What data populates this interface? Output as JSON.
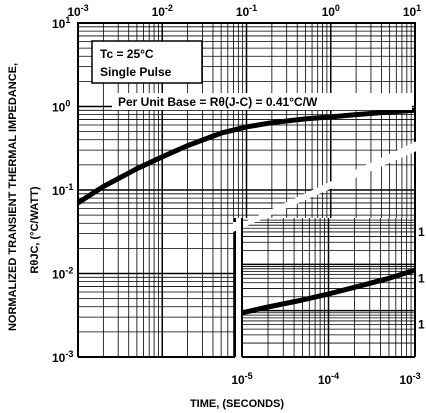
{
  "chart_data": {
    "type": "line",
    "ylabel_line1": "NORMALIZED TRANSIENT THERMAL IMPEDANCE,",
    "ylabel_line2": "RθJC, (°C/WATT)",
    "xlabel": "TIME, (SECONDS)",
    "annotations": {
      "condition_1": "Tc = 25°C",
      "condition_2": "Single Pulse",
      "base": "Per Unit Base = Rθ(J-C) = 0.41°C/W"
    },
    "x_scale": "log",
    "y_scale": "log",
    "grid": true,
    "main_axis": {
      "xlim": [
        0.001,
        10
      ],
      "ylim": [
        0.001,
        10
      ],
      "top_tick_labels": [
        "10-3",
        "10-2",
        "10-1",
        "100",
        "101"
      ],
      "left_tick_labels": [
        "101",
        "100",
        "10-1",
        "10-2",
        "10-3"
      ]
    },
    "inset_axis": {
      "xlim": [
        1e-05,
        0.001
      ],
      "ylim": [
        0.001,
        1
      ],
      "bottom_tick_labels": [
        "10-5",
        "10-4",
        "10-3"
      ],
      "right_tick_labels": [
        "1",
        "1",
        "1"
      ]
    },
    "series": [
      {
        "axis": "main",
        "x": [
          0.001,
          0.002,
          0.005,
          0.01,
          0.02,
          0.05,
          0.1,
          0.2,
          0.5,
          1,
          2,
          5,
          10
        ],
        "y": [
          0.07,
          0.11,
          0.18,
          0.25,
          0.34,
          0.48,
          0.57,
          0.64,
          0.71,
          0.75,
          0.8,
          0.86,
          0.9
        ]
      },
      {
        "axis": "inset",
        "x": [
          1e-05,
          2e-05,
          5e-05,
          0.0001,
          0.0002,
          0.0005,
          0.001
        ],
        "y": [
          0.009,
          0.012,
          0.017,
          0.023,
          0.032,
          0.05,
          0.075
        ]
      }
    ]
  }
}
